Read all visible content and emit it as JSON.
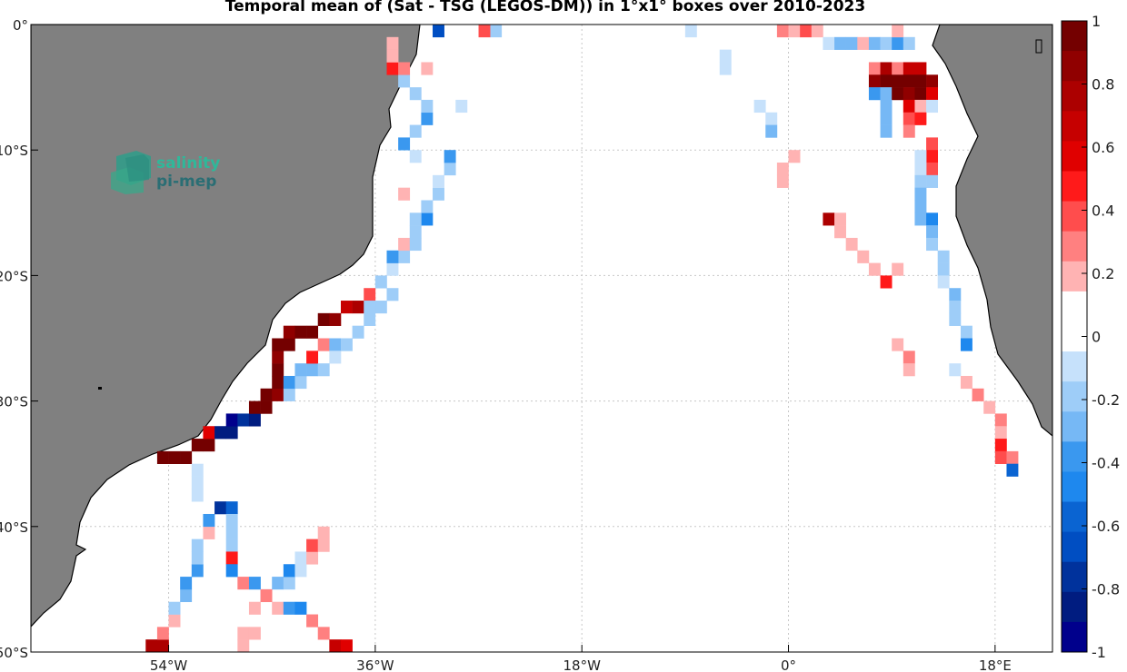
{
  "title": "Temporal mean of (Sat - TSG (LEGOS-DM)) in 1°x1° boxes over 2010-2023",
  "logo": {
    "line1": "salinity",
    "line2": "pi-mep",
    "icon": "cube-logo-icon"
  },
  "colors": {
    "land": "#808080",
    "ocean": "#ffffff",
    "grid": "#c8c8c8"
  },
  "chart_data": {
    "type": "heatmap",
    "projection": "lon-lat",
    "xlim": [
      -66,
      23
    ],
    "ylim": [
      -50,
      0
    ],
    "x_ticks": [
      {
        "value": -54,
        "label": "54°W"
      },
      {
        "value": -36,
        "label": "36°W"
      },
      {
        "value": -18,
        "label": "18°W"
      },
      {
        "value": 0,
        "label": "0°"
      },
      {
        "value": 18,
        "label": "18°E"
      }
    ],
    "y_ticks": [
      {
        "value": 0,
        "label": "0°"
      },
      {
        "value": -10,
        "label": "10°S"
      },
      {
        "value": -20,
        "label": "20°S"
      },
      {
        "value": -30,
        "label": "30°S"
      },
      {
        "value": -40,
        "label": "40°S"
      },
      {
        "value": -50,
        "label": "50°S"
      }
    ],
    "grid": true,
    "colorbar": {
      "range": [
        -1,
        1
      ],
      "ticks": [
        "1",
        "0.8",
        "0.6",
        "0.4",
        "0.2",
        "0",
        "-0.2",
        "-0.4",
        "-0.6",
        "-0.8",
        "-1"
      ],
      "levels_top_to_bottom": [
        "#740000",
        "#900000",
        "#ac0000",
        "#c60000",
        "#e00000",
        "#ff1a1a",
        "#ff4d4d",
        "#ff8080",
        "#ffb3b3",
        "#ffffff",
        "#ffffff",
        "#c6e1fb",
        "#9ecdf8",
        "#76b8f5",
        "#3a98ef",
        "#1e88ee",
        "#0a64d2",
        "#004ec2",
        "#00329c",
        "#001c80",
        "#00008c"
      ]
    },
    "cells": [
      [
        -48,
        -49.5,
        0.2
      ],
      [
        -48,
        -48.5,
        0.2
      ],
      [
        -47,
        -48.5,
        0.2
      ],
      [
        -47,
        -46.5,
        0.2
      ],
      [
        -46,
        -45.5,
        -0.2
      ],
      [
        -45,
        -44.5,
        -0.3
      ],
      [
        -44,
        -44.5,
        -0.2
      ],
      [
        -44,
        -43.5,
        -0.5
      ],
      [
        -43,
        -43.5,
        -0.1
      ],
      [
        -43,
        -42.5,
        -0.1
      ],
      [
        -42,
        -42.5,
        0.2
      ],
      [
        -42,
        -41.5,
        0.4
      ],
      [
        -41,
        -41.5,
        0.2
      ],
      [
        -41,
        -40.5,
        0.2
      ],
      [
        -56,
        -49.5,
        0.8
      ],
      [
        -55,
        -49.5,
        0.8
      ],
      [
        -55,
        -48.5,
        0.3
      ],
      [
        -54,
        -47.5,
        0.2
      ],
      [
        -54,
        -46.5,
        -0.2
      ],
      [
        -53,
        -45.5,
        -0.3
      ],
      [
        -53,
        -44.5,
        -0.4
      ],
      [
        -52,
        -43.5,
        -0.4
      ],
      [
        -52,
        -42.5,
        -0.2
      ],
      [
        -52,
        -41.5,
        -0.2
      ],
      [
        -51,
        -40.5,
        0.2
      ],
      [
        -51,
        -39.5,
        -0.4
      ],
      [
        -50,
        -38.5,
        -0.8
      ],
      [
        -49,
        -38.5,
        -0.6
      ],
      [
        -49,
        -39.5,
        -0.2
      ],
      [
        -49,
        -40.5,
        -0.2
      ],
      [
        -49,
        -41.5,
        -0.2
      ],
      [
        -49,
        -42.5,
        0.5
      ],
      [
        -49,
        -43.5,
        -0.5
      ],
      [
        -48,
        -44.5,
        0.3
      ],
      [
        -47,
        -44.5,
        -0.4
      ],
      [
        -46,
        -45.5,
        0.3
      ],
      [
        -45,
        -46.5,
        0.2
      ],
      [
        -44,
        -46.5,
        -0.4
      ],
      [
        -43,
        -46.5,
        -0.5
      ],
      [
        -42,
        -47.5,
        0.3
      ],
      [
        -41,
        -48.5,
        0.3
      ],
      [
        -40,
        -49.5,
        0.7
      ],
      [
        -39,
        -49.5,
        0.6
      ],
      [
        -55,
        -34.5,
        1
      ],
      [
        -54,
        -34.5,
        1
      ],
      [
        -53,
        -34.5,
        1
      ],
      [
        -52,
        -33.5,
        1
      ],
      [
        -51,
        -33.5,
        1
      ],
      [
        -51,
        -32.5,
        0.6
      ],
      [
        -50,
        -32.5,
        -0.9
      ],
      [
        -49,
        -32.5,
        -0.9
      ],
      [
        -49,
        -31.5,
        -1
      ],
      [
        -48,
        -31.5,
        -0.8
      ],
      [
        -47,
        -31.5,
        -0.9
      ],
      [
        -47,
        -30.5,
        1
      ],
      [
        -46,
        -30.5,
        1
      ],
      [
        -46,
        -29.5,
        1
      ],
      [
        -45,
        -29.5,
        0.9
      ],
      [
        -45,
        -28.5,
        1
      ],
      [
        -45,
        -27.5,
        1
      ],
      [
        -45,
        -26.5,
        0.9
      ],
      [
        -45,
        -25.5,
        1
      ],
      [
        -44,
        -25.5,
        1
      ],
      [
        -44,
        -24.5,
        0.9
      ],
      [
        -43,
        -24.5,
        1
      ],
      [
        -42,
        -24.5,
        1
      ],
      [
        -41,
        -23.5,
        1
      ],
      [
        -40,
        -23.5,
        0.9
      ],
      [
        -39,
        -22.5,
        0.7
      ],
      [
        -38,
        -22.5,
        0.8
      ],
      [
        -37,
        -21.5,
        0.4
      ],
      [
        -44,
        -29.5,
        -0.2
      ],
      [
        -44,
        -28.5,
        -0.4
      ],
      [
        -43,
        -28.5,
        -0.2
      ],
      [
        -43,
        -27.5,
        -0.3
      ],
      [
        -42,
        -27.5,
        -0.3
      ],
      [
        -42,
        -26.5,
        0.5
      ],
      [
        -41,
        -25.5,
        0.3
      ],
      [
        -40,
        -25.5,
        -0.3
      ],
      [
        -40,
        -26.5,
        -0.1
      ],
      [
        -41,
        -27.5,
        -0.2
      ],
      [
        -39,
        -25.5,
        -0.2
      ],
      [
        -38,
        -24.5,
        -0.2
      ],
      [
        -37,
        -23.5,
        -0.2
      ],
      [
        -36,
        -22.5,
        -0.2
      ],
      [
        -37,
        -22.5,
        -0.2
      ],
      [
        -35,
        -21.5,
        -0.2
      ],
      [
        -36,
        -20.5,
        -0.2
      ],
      [
        -35,
        -19.5,
        -0.1
      ],
      [
        -34,
        -18.5,
        -0.2
      ],
      [
        -35,
        -18.5,
        -0.4
      ],
      [
        -34,
        -17.5,
        0.2
      ],
      [
        -33,
        -17.5,
        -0.2
      ],
      [
        -33,
        -16.5,
        -0.2
      ],
      [
        -32,
        -15.5,
        -0.5
      ],
      [
        -33,
        -15.5,
        -0.2
      ],
      [
        -32,
        -14.5,
        -0.2
      ],
      [
        -31,
        -13.5,
        -0.2
      ],
      [
        -31,
        -12.5,
        -0.1
      ],
      [
        -30,
        -11.5,
        -0.2
      ],
      [
        -30,
        -10.5,
        -0.4
      ],
      [
        -33,
        -10.5,
        -0.1
      ],
      [
        -34,
        -9.5,
        -0.4
      ],
      [
        -33,
        -8.5,
        -0.2
      ],
      [
        -32,
        -7.5,
        -0.4
      ],
      [
        -32,
        -6.5,
        -0.2
      ],
      [
        -29,
        -6.5,
        -0.1
      ],
      [
        -33,
        -5.5,
        -0.2
      ],
      [
        -34,
        -4.5,
        -0.2
      ],
      [
        -35,
        -3.5,
        0.5
      ],
      [
        -34,
        -3.5,
        0.3
      ],
      [
        -32,
        -3.5,
        0.2
      ],
      [
        -35,
        -2.5,
        0.2
      ],
      [
        -35,
        -1.5,
        0.2
      ],
      [
        -34,
        -13.5,
        0.2
      ],
      [
        -31,
        -0.5,
        -0.7
      ],
      [
        -26,
        -0.5,
        -0.2
      ],
      [
        -27,
        -0.5,
        0.4
      ],
      [
        -9,
        -0.5,
        -0.1
      ],
      [
        -1,
        -0.5,
        0.3
      ],
      [
        0,
        -0.5,
        0.2
      ],
      [
        1,
        -0.5,
        0.4
      ],
      [
        2,
        -0.5,
        0.2
      ],
      [
        3,
        -1.5,
        -0.1
      ],
      [
        4,
        -1.5,
        -0.3
      ],
      [
        5,
        -1.5,
        -0.3
      ],
      [
        6,
        -1.5,
        0.2
      ],
      [
        7,
        -1.5,
        -0.3
      ],
      [
        8,
        -1.5,
        -0.2
      ],
      [
        9,
        -1.5,
        -0.4
      ],
      [
        10,
        -1.5,
        -0.2
      ],
      [
        9,
        -0.5,
        0.2
      ],
      [
        -6,
        -3.5,
        -0.1
      ],
      [
        -6,
        -2.5,
        -0.1
      ],
      [
        -3,
        -6.5,
        -0.1
      ],
      [
        -2,
        -7.5,
        -0.1
      ],
      [
        -2,
        -8.5,
        -0.3
      ],
      [
        7,
        -3.5,
        0.3
      ],
      [
        8,
        -3.5,
        0.8
      ],
      [
        9,
        -3.5,
        0.3
      ],
      [
        10,
        -3.5,
        0.7
      ],
      [
        11,
        -3.5,
        0.7
      ],
      [
        7,
        -4.5,
        0.9
      ],
      [
        8,
        -4.5,
        1
      ],
      [
        9,
        -4.5,
        1
      ],
      [
        10,
        -4.5,
        1
      ],
      [
        11,
        -4.5,
        1
      ],
      [
        12,
        -4.5,
        0.9
      ],
      [
        7,
        -5.5,
        -0.4
      ],
      [
        8,
        -5.5,
        -0.3
      ],
      [
        9,
        -5.5,
        1
      ],
      [
        10,
        -5.5,
        0.9
      ],
      [
        11,
        -5.5,
        1
      ],
      [
        12,
        -5.5,
        0.6
      ],
      [
        8,
        -6.5,
        -0.3
      ],
      [
        10,
        -6.5,
        0.6
      ],
      [
        11,
        -6.5,
        0.2
      ],
      [
        12,
        -6.5,
        -0.1
      ],
      [
        8,
        -7.5,
        -0.3
      ],
      [
        10,
        -7.5,
        0.4
      ],
      [
        11,
        -7.5,
        0.5
      ],
      [
        8,
        -8.5,
        -0.3
      ],
      [
        10,
        -8.5,
        0.3
      ],
      [
        12,
        -8.5,
        0.1
      ],
      [
        12,
        -9.5,
        0.4
      ],
      [
        12,
        -10.5,
        0.5
      ],
      [
        11,
        -10.5,
        -0.1
      ],
      [
        12,
        -11.5,
        0.4
      ],
      [
        11,
        -11.5,
        -0.1
      ],
      [
        12,
        -12.5,
        -0.2
      ],
      [
        11,
        -12.5,
        -0.2
      ],
      [
        11,
        -13.5,
        -0.3
      ],
      [
        11,
        -14.5,
        -0.3
      ],
      [
        11,
        -15.5,
        -0.3
      ],
      [
        12,
        -15.5,
        -0.5
      ],
      [
        12,
        -16.5,
        -0.3
      ],
      [
        12,
        -17.5,
        -0.2
      ],
      [
        13,
        -18.5,
        -0.2
      ],
      [
        13,
        -19.5,
        -0.2
      ],
      [
        13,
        -20.5,
        -0.1
      ],
      [
        14,
        -21.5,
        -0.3
      ],
      [
        14,
        -22.5,
        -0.2
      ],
      [
        14,
        -23.5,
        -0.2
      ],
      [
        15,
        -24.5,
        -0.2
      ],
      [
        15,
        -25.5,
        -0.5
      ],
      [
        14,
        -27.5,
        -0.1
      ],
      [
        15,
        -28.5,
        0.2
      ],
      [
        16,
        -29.5,
        0.3
      ],
      [
        17,
        -30.5,
        0.2
      ],
      [
        18,
        -31.5,
        0.3
      ],
      [
        18,
        -32.5,
        0.2
      ],
      [
        18,
        -33.5,
        0.5
      ],
      [
        18,
        -34.5,
        0.4
      ],
      [
        19,
        -34.5,
        0.3
      ],
      [
        19,
        -35.5,
        -0.6
      ],
      [
        -1,
        -11.5,
        0.2
      ],
      [
        0,
        -10.5,
        0.2
      ],
      [
        -1,
        -12.5,
        0.2
      ],
      [
        3,
        -15.5,
        0.8
      ],
      [
        4,
        -15.5,
        0.2
      ],
      [
        4,
        -16.5,
        0.2
      ],
      [
        5,
        -17.5,
        0.2
      ],
      [
        6,
        -18.5,
        0.2
      ],
      [
        7,
        -19.5,
        0.2
      ],
      [
        8,
        -20.5,
        0.5
      ],
      [
        9,
        -19.5,
        0.2
      ],
      [
        9,
        -25.5,
        0.2
      ],
      [
        10,
        -26.5,
        0.3
      ],
      [
        10,
        -27.5,
        0.2
      ],
      [
        -52,
        -37.5,
        -0.1
      ],
      [
        -52,
        -36.5,
        -0.1
      ],
      [
        -52,
        -35.5,
        -0.1
      ]
    ]
  }
}
